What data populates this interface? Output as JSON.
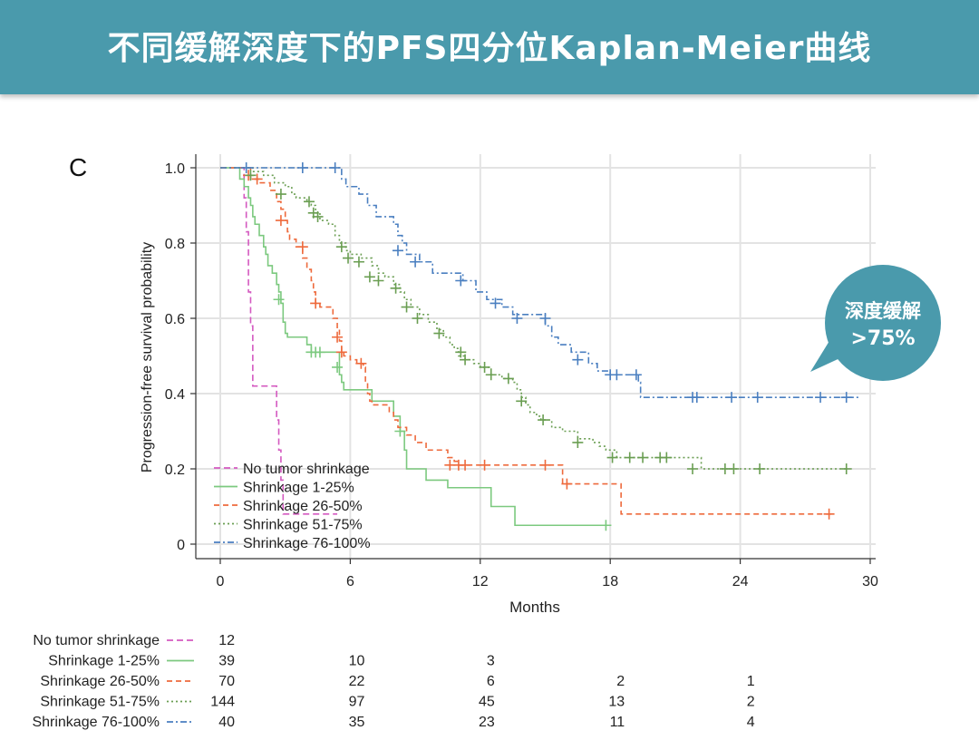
{
  "banner": {
    "title": "不同缓解深度下的PFS四分位Kaplan-Meier曲线"
  },
  "callout": {
    "line1": "深度缓解",
    "line2": ">75%",
    "color": "#4a9aac"
  },
  "chart_data": {
    "type": "line",
    "panel_label": "C",
    "xlabel": "Months",
    "ylabel": "Progression-free survival probability",
    "xlim": [
      0,
      30
    ],
    "ylim": [
      0,
      1
    ],
    "xticks": [
      0,
      6,
      12,
      18,
      24,
      30
    ],
    "yticks": [
      0,
      0.2,
      0.4,
      0.6,
      0.8,
      1.0
    ],
    "ytick_labels": [
      "0",
      "0.2",
      "0.4",
      "0.6",
      "0.8",
      "1.0"
    ],
    "grid": true,
    "legend_position": "bottom-left",
    "series": [
      {
        "name": "No tumor shrinkage",
        "color": "#d459c0",
        "dash": "7,4",
        "steps": [
          [
            0,
            1.0
          ],
          [
            1.0,
            1.0
          ],
          [
            1.1,
            0.92
          ],
          [
            1.2,
            0.83
          ],
          [
            1.3,
            0.67
          ],
          [
            1.4,
            0.58
          ],
          [
            1.5,
            0.42
          ],
          [
            2.6,
            0.33
          ],
          [
            2.7,
            0.25
          ],
          [
            2.8,
            0.17
          ],
          [
            2.9,
            0.08
          ],
          [
            5.4,
            0.08
          ]
        ],
        "censored": []
      },
      {
        "name": "Shrinkage 1-25%",
        "color": "#7cc97f",
        "dash": "",
        "steps": [
          [
            0,
            1.0
          ],
          [
            0.8,
            1.0
          ],
          [
            0.9,
            0.97
          ],
          [
            1.1,
            0.95
          ],
          [
            1.3,
            0.92
          ],
          [
            1.4,
            0.9
          ],
          [
            1.5,
            0.87
          ],
          [
            1.6,
            0.85
          ],
          [
            1.8,
            0.82
          ],
          [
            2.0,
            0.79
          ],
          [
            2.1,
            0.77
          ],
          [
            2.2,
            0.74
          ],
          [
            2.4,
            0.72
          ],
          [
            2.6,
            0.69
          ],
          [
            2.7,
            0.67
          ],
          [
            2.8,
            0.64
          ],
          [
            2.9,
            0.59
          ],
          [
            3.0,
            0.56
          ],
          [
            3.1,
            0.55
          ],
          [
            4.0,
            0.53
          ],
          [
            4.2,
            0.51
          ],
          [
            5.5,
            0.45
          ],
          [
            5.6,
            0.43
          ],
          [
            5.7,
            0.41
          ],
          [
            7.0,
            0.38
          ],
          [
            8.0,
            0.34
          ],
          [
            8.3,
            0.3
          ],
          [
            8.5,
            0.25
          ],
          [
            8.6,
            0.2
          ],
          [
            9.5,
            0.17
          ],
          [
            10.5,
            0.15
          ],
          [
            12.5,
            0.1
          ],
          [
            13.6,
            0.05
          ],
          [
            17.9,
            0.05
          ]
        ],
        "censored": [
          [
            2.7,
            0.65
          ],
          [
            4.2,
            0.51
          ],
          [
            4.4,
            0.51
          ],
          [
            4.6,
            0.51
          ],
          [
            5.4,
            0.47
          ],
          [
            8.3,
            0.3
          ],
          [
            17.8,
            0.05
          ]
        ]
      },
      {
        "name": "Shrinkage 26-50%",
        "color": "#ee6a3c",
        "dash": "6,4",
        "steps": [
          [
            0,
            1.0
          ],
          [
            1.3,
            1.0
          ],
          [
            1.4,
            0.97
          ],
          [
            1.8,
            0.96
          ],
          [
            2.3,
            0.94
          ],
          [
            2.6,
            0.91
          ],
          [
            2.8,
            0.89
          ],
          [
            3.0,
            0.86
          ],
          [
            3.1,
            0.83
          ],
          [
            3.2,
            0.81
          ],
          [
            3.5,
            0.79
          ],
          [
            3.8,
            0.76
          ],
          [
            4.0,
            0.73
          ],
          [
            4.2,
            0.7
          ],
          [
            4.3,
            0.67
          ],
          [
            4.4,
            0.64
          ],
          [
            4.6,
            0.63
          ],
          [
            5.2,
            0.6
          ],
          [
            5.4,
            0.57
          ],
          [
            5.5,
            0.54
          ],
          [
            5.6,
            0.51
          ],
          [
            5.7,
            0.5
          ],
          [
            6.0,
            0.49
          ],
          [
            6.3,
            0.48
          ],
          [
            6.6,
            0.47
          ],
          [
            6.7,
            0.43
          ],
          [
            6.8,
            0.4
          ],
          [
            6.9,
            0.38
          ],
          [
            7.0,
            0.37
          ],
          [
            7.8,
            0.35
          ],
          [
            8.0,
            0.33
          ],
          [
            8.2,
            0.31
          ],
          [
            8.6,
            0.29
          ],
          [
            9.0,
            0.27
          ],
          [
            9.5,
            0.25
          ],
          [
            10.5,
            0.23
          ],
          [
            10.8,
            0.22
          ],
          [
            11.0,
            0.21
          ],
          [
            14.5,
            0.21
          ],
          [
            15.8,
            0.16
          ],
          [
            18.0,
            0.16
          ],
          [
            18.5,
            0.08
          ],
          [
            28.2,
            0.08
          ]
        ],
        "censored": [
          [
            1.3,
            0.98
          ],
          [
            1.7,
            0.97
          ],
          [
            2.8,
            0.86
          ],
          [
            3.8,
            0.79
          ],
          [
            4.4,
            0.64
          ],
          [
            5.4,
            0.55
          ],
          [
            5.6,
            0.51
          ],
          [
            6.5,
            0.48
          ],
          [
            10.6,
            0.21
          ],
          [
            11.0,
            0.21
          ],
          [
            11.3,
            0.21
          ],
          [
            12.2,
            0.21
          ],
          [
            15.0,
            0.21
          ],
          [
            16.0,
            0.16
          ],
          [
            28.1,
            0.08
          ]
        ]
      },
      {
        "name": "Shrinkage 51-75%",
        "color": "#6a9e52",
        "dash": "2,3",
        "steps": [
          [
            0,
            1.0
          ],
          [
            1.0,
            1.0
          ],
          [
            1.5,
            0.99
          ],
          [
            2.0,
            0.98
          ],
          [
            2.5,
            0.96
          ],
          [
            3.0,
            0.95
          ],
          [
            3.3,
            0.93
          ],
          [
            3.5,
            0.92
          ],
          [
            4.0,
            0.91
          ],
          [
            4.2,
            0.9
          ],
          [
            4.4,
            0.88
          ],
          [
            4.6,
            0.86
          ],
          [
            5.0,
            0.85
          ],
          [
            5.3,
            0.82
          ],
          [
            5.5,
            0.8
          ],
          [
            5.8,
            0.78
          ],
          [
            6.0,
            0.77
          ],
          [
            6.5,
            0.76
          ],
          [
            7.0,
            0.74
          ],
          [
            7.3,
            0.72
          ],
          [
            7.6,
            0.71
          ],
          [
            8.0,
            0.69
          ],
          [
            8.3,
            0.67
          ],
          [
            8.5,
            0.65
          ],
          [
            8.8,
            0.63
          ],
          [
            9.2,
            0.61
          ],
          [
            9.6,
            0.59
          ],
          [
            10.0,
            0.57
          ],
          [
            10.3,
            0.55
          ],
          [
            10.6,
            0.53
          ],
          [
            10.8,
            0.52
          ],
          [
            11.0,
            0.5
          ],
          [
            11.3,
            0.49
          ],
          [
            11.7,
            0.48
          ],
          [
            12.0,
            0.47
          ],
          [
            12.5,
            0.45
          ],
          [
            13.0,
            0.44
          ],
          [
            13.5,
            0.43
          ],
          [
            13.7,
            0.41
          ],
          [
            13.9,
            0.39
          ],
          [
            14.1,
            0.37
          ],
          [
            14.3,
            0.35
          ],
          [
            14.6,
            0.34
          ],
          [
            14.8,
            0.33
          ],
          [
            15.3,
            0.31
          ],
          [
            15.8,
            0.3
          ],
          [
            16.5,
            0.28
          ],
          [
            17.2,
            0.27
          ],
          [
            17.5,
            0.26
          ],
          [
            17.8,
            0.25
          ],
          [
            18.3,
            0.23
          ],
          [
            21.0,
            0.23
          ],
          [
            22.2,
            0.2
          ],
          [
            29.0,
            0.2
          ]
        ],
        "censored": [
          [
            1.4,
            0.98
          ],
          [
            2.8,
            0.93
          ],
          [
            4.1,
            0.91
          ],
          [
            4.3,
            0.88
          ],
          [
            4.5,
            0.87
          ],
          [
            5.6,
            0.79
          ],
          [
            5.9,
            0.76
          ],
          [
            6.4,
            0.75
          ],
          [
            6.9,
            0.71
          ],
          [
            7.3,
            0.7
          ],
          [
            8.1,
            0.68
          ],
          [
            8.6,
            0.63
          ],
          [
            9.1,
            0.6
          ],
          [
            10.1,
            0.56
          ],
          [
            11.1,
            0.51
          ],
          [
            11.3,
            0.49
          ],
          [
            12.2,
            0.47
          ],
          [
            12.5,
            0.45
          ],
          [
            13.3,
            0.44
          ],
          [
            13.9,
            0.38
          ],
          [
            14.9,
            0.33
          ],
          [
            16.5,
            0.27
          ],
          [
            18.1,
            0.23
          ],
          [
            18.9,
            0.23
          ],
          [
            19.5,
            0.23
          ],
          [
            20.3,
            0.23
          ],
          [
            20.6,
            0.23
          ],
          [
            21.8,
            0.2
          ],
          [
            23.3,
            0.2
          ],
          [
            23.7,
            0.2
          ],
          [
            24.9,
            0.2
          ],
          [
            28.9,
            0.2
          ]
        ]
      },
      {
        "name": "Shrinkage 76-100%",
        "color": "#4a7fc0",
        "dash": "7,3,2,3",
        "steps": [
          [
            0,
            1.0
          ],
          [
            5.4,
            1.0
          ],
          [
            5.6,
            0.97
          ],
          [
            5.8,
            0.95
          ],
          [
            6.4,
            0.93
          ],
          [
            6.8,
            0.9
          ],
          [
            7.2,
            0.87
          ],
          [
            8.0,
            0.85
          ],
          [
            8.2,
            0.82
          ],
          [
            8.4,
            0.8
          ],
          [
            8.6,
            0.77
          ],
          [
            9.2,
            0.75
          ],
          [
            9.8,
            0.72
          ],
          [
            11.2,
            0.7
          ],
          [
            11.8,
            0.67
          ],
          [
            12.3,
            0.65
          ],
          [
            13.0,
            0.63
          ],
          [
            13.5,
            0.61
          ],
          [
            15.0,
            0.58
          ],
          [
            15.3,
            0.55
          ],
          [
            15.6,
            0.53
          ],
          [
            16.2,
            0.51
          ],
          [
            17.0,
            0.48
          ],
          [
            17.4,
            0.46
          ],
          [
            18.0,
            0.45
          ],
          [
            19.3,
            0.43
          ],
          [
            19.4,
            0.39
          ],
          [
            29.5,
            0.39
          ]
        ],
        "censored": [
          [
            1.2,
            1.0
          ],
          [
            3.8,
            1.0
          ],
          [
            5.3,
            1.0
          ],
          [
            8.2,
            0.78
          ],
          [
            9.0,
            0.75
          ],
          [
            11.1,
            0.7
          ],
          [
            12.7,
            0.64
          ],
          [
            13.7,
            0.6
          ],
          [
            15.0,
            0.6
          ],
          [
            16.5,
            0.49
          ],
          [
            18.0,
            0.45
          ],
          [
            18.3,
            0.45
          ],
          [
            19.2,
            0.45
          ],
          [
            21.8,
            0.39
          ],
          [
            22.0,
            0.39
          ],
          [
            23.6,
            0.39
          ],
          [
            24.8,
            0.39
          ],
          [
            27.7,
            0.39
          ],
          [
            28.9,
            0.39
          ]
        ]
      }
    ],
    "risk_table": {
      "times": [
        0,
        6,
        12,
        18,
        24
      ],
      "rows": [
        {
          "label": "No tumor shrinkage",
          "counts": [
            "12",
            "",
            "",
            "",
            ""
          ]
        },
        {
          "label": "Shrinkage 1-25%",
          "counts": [
            "39",
            "10",
            "3",
            "",
            ""
          ]
        },
        {
          "label": "Shrinkage 26-50%",
          "counts": [
            "70",
            "22",
            "6",
            "2",
            "1"
          ]
        },
        {
          "label": "Shrinkage 51-75%",
          "counts": [
            "144",
            "97",
            "45",
            "13",
            "2"
          ]
        },
        {
          "label": "Shrinkage 76-100%",
          "counts": [
            "40",
            "35",
            "23",
            "11",
            "4"
          ]
        }
      ]
    }
  }
}
